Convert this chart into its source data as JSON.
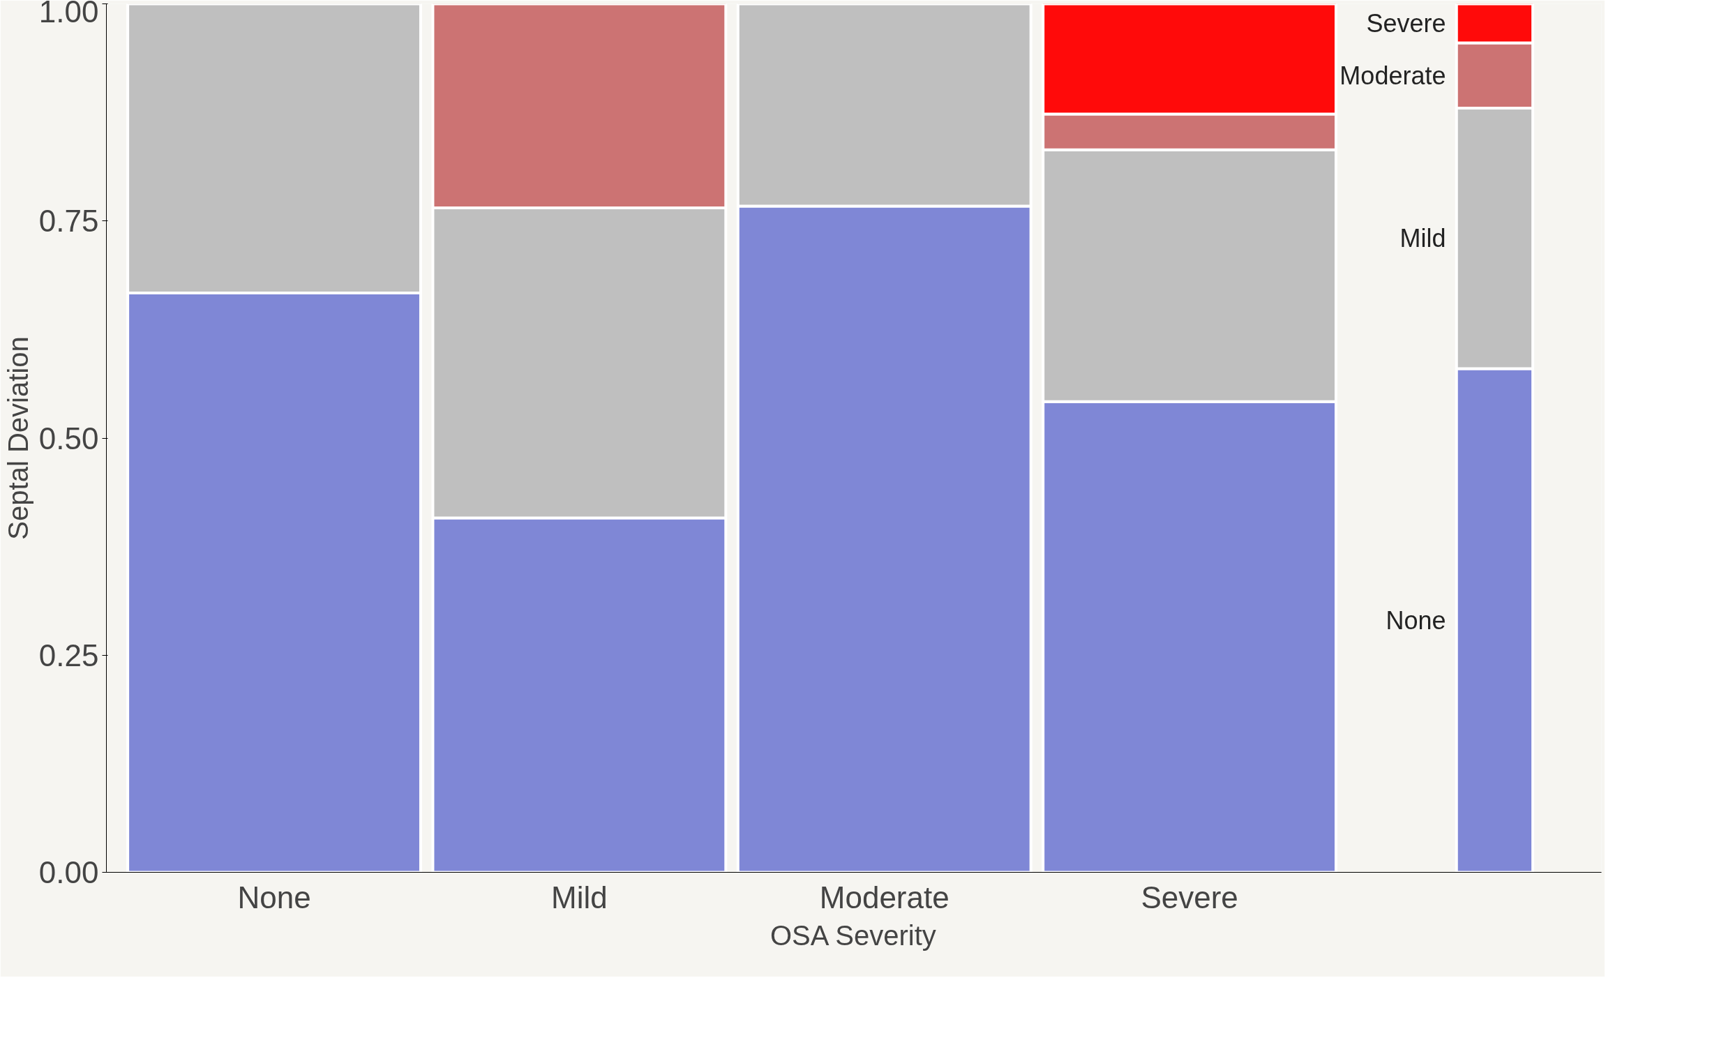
{
  "chart_data": {
    "type": "bar",
    "stacked": true,
    "xlabel": "OSA Severity",
    "ylabel": "Septal Deviation",
    "categories": [
      "None",
      "Mild",
      "Moderate",
      "Severe",
      null
    ],
    "series": [
      {
        "name": "None",
        "color": "#7f87d6",
        "values": [
          0.667,
          0.408,
          0.767,
          0.542,
          0.58
        ]
      },
      {
        "name": "Mild",
        "color": "#bfbfbf",
        "values": [
          0.333,
          0.357,
          0.233,
          0.29,
          0.3
        ]
      },
      {
        "name": "Moderate",
        "color": "#cc7373",
        "values": [
          0,
          0.235,
          0,
          0.041,
          0.075
        ]
      },
      {
        "name": "Severe",
        "color": "#ff0a0a",
        "values": [
          0,
          0,
          0,
          0.127,
          0.045
        ]
      }
    ],
    "ylim": [
      0,
      1
    ],
    "yticks": [
      {
        "value": 0,
        "label": "0.00"
      },
      {
        "value": 0.25,
        "label": "0.25"
      },
      {
        "value": 0.5,
        "label": "0.50"
      },
      {
        "value": 0.75,
        "label": "0.75"
      },
      {
        "value": 1,
        "label": "1.00"
      }
    ],
    "grid": false,
    "legend": "right"
  }
}
